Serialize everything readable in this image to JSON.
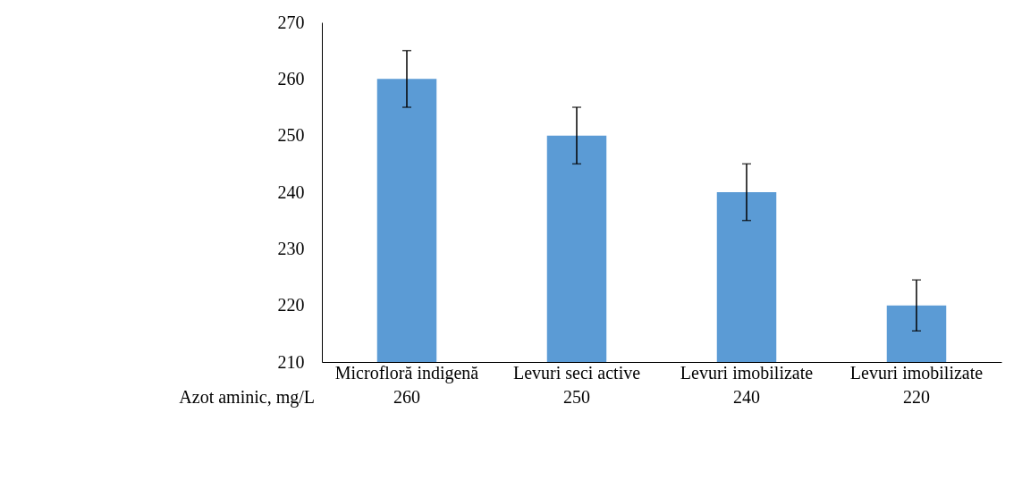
{
  "chart_data": {
    "type": "bar",
    "categories": [
      "Microfloră indigenă",
      "Levuri seci active",
      "Levuri imobilizate",
      "Levuri imobilizate"
    ],
    "series": [
      {
        "name": "Azot aminic, mg/L",
        "color": "#5b9bd5",
        "values": [
          260,
          250,
          240,
          220
        ],
        "errors": [
          5,
          5,
          5,
          4.5
        ]
      }
    ],
    "ylim": [
      210,
      270
    ],
    "yticks": [
      210,
      220,
      230,
      240,
      250,
      260,
      270
    ],
    "grid": false,
    "legend": false,
    "data_labels": true
  }
}
